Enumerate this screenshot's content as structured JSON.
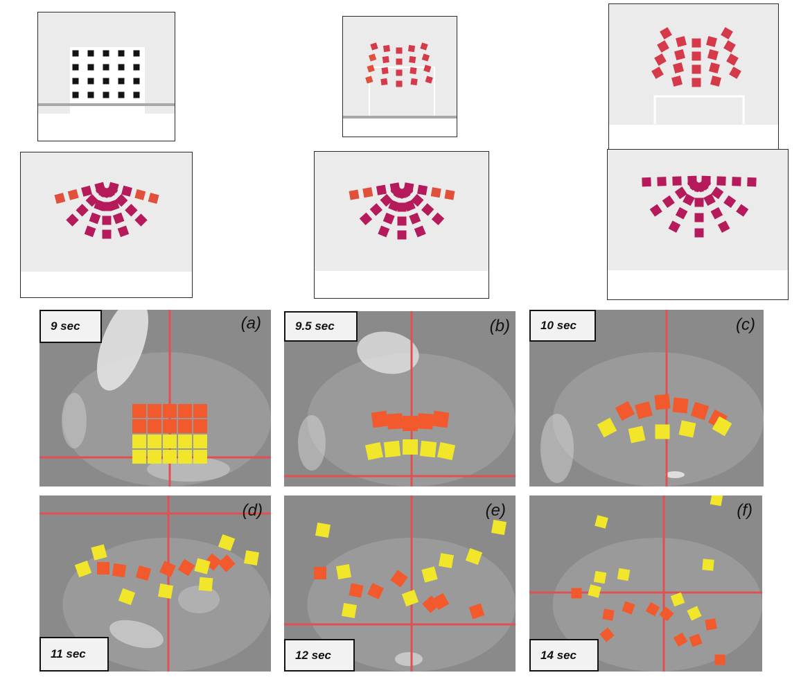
{
  "figure": {
    "panels": [
      {
        "id": "a",
        "label": "(a)",
        "time": "9 sec"
      },
      {
        "id": "b",
        "label": "(b)",
        "time": "9.5 sec"
      },
      {
        "id": "c",
        "label": "(c)",
        "time": "10 sec"
      },
      {
        "id": "d",
        "label": "(d)",
        "time": "11 sec"
      },
      {
        "id": "e",
        "label": "(e)",
        "time": "12 sec"
      },
      {
        "id": "f",
        "label": "(f)",
        "time": "14 sec"
      }
    ],
    "colors": {
      "sim_black": "#141414",
      "sim_red": "#d43a4a",
      "sim_magenta": "#b51a5a",
      "sim_orange": "#e0503a",
      "robot_orange": "#f25a2e",
      "robot_yellow": "#f2e62a",
      "grid_line": "#e05050",
      "photo_bg": "#8a8a8a"
    }
  }
}
